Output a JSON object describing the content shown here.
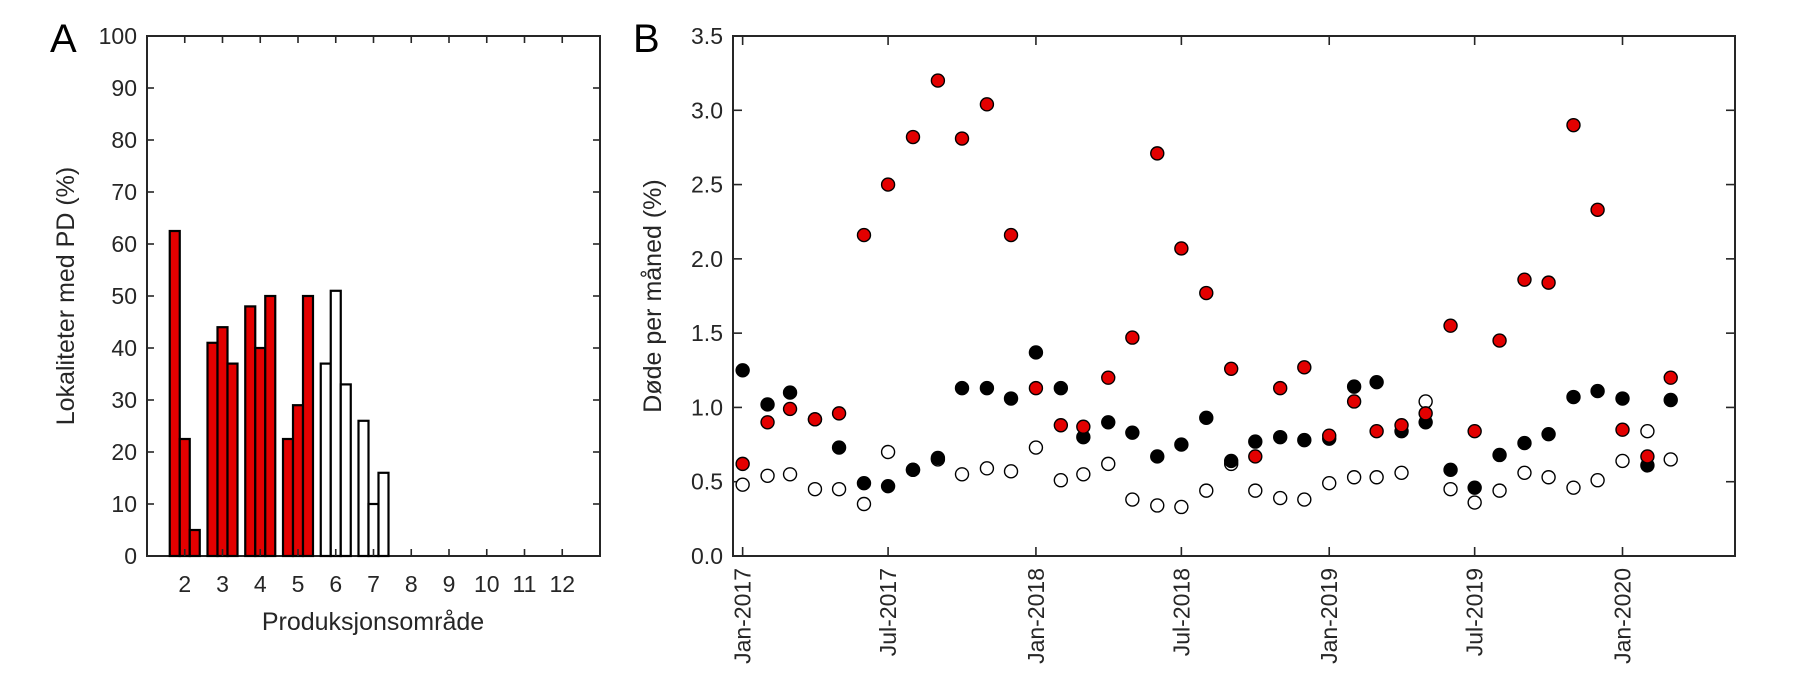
{
  "figure": {
    "colors": {
      "red": "#e30000",
      "black": "#000000",
      "white": "#ffffff",
      "axis": "#262626"
    }
  },
  "chart_data": [
    {
      "panel": "A",
      "type": "bar",
      "xlabel": "Produksjonsområde",
      "ylabel": "Lokaliteter med PD (%)",
      "ylim": [
        0,
        100
      ],
      "yticks": [
        0,
        10,
        20,
        30,
        40,
        50,
        60,
        70,
        80,
        90,
        100
      ],
      "categories": [
        "2",
        "3",
        "4",
        "5",
        "6",
        "7",
        "8",
        "9",
        "10",
        "11",
        "12"
      ],
      "fill_by_category": [
        "red",
        "red",
        "red",
        "red",
        "white",
        "white",
        "white",
        "white",
        "white",
        "white",
        "white"
      ],
      "series": [
        {
          "values": [
            62.5,
            41,
            48,
            22.5,
            37,
            26,
            0,
            0,
            0,
            0,
            0
          ]
        },
        {
          "values": [
            22.5,
            44,
            40,
            29,
            51,
            10,
            0,
            0,
            0,
            0,
            0
          ]
        },
        {
          "values": [
            5,
            37,
            50,
            50,
            33,
            16,
            0,
            0,
            0,
            0,
            0
          ]
        }
      ]
    },
    {
      "panel": "B",
      "type": "scatter",
      "ylabel": "Døde per måned (%)",
      "ylim": [
        0,
        3.5
      ],
      "yticks": [
        "0.0",
        "0.5",
        "1.0",
        "1.5",
        "2.0",
        "2.5",
        "3.0",
        "3.5"
      ],
      "xlim": [
        "2016-12-20",
        "2020-05-20"
      ],
      "xticks": [
        {
          "date": "2017-01-01",
          "label": "Jan-2017"
        },
        {
          "date": "2017-07-01",
          "label": "Jul-2017"
        },
        {
          "date": "2018-01-01",
          "label": "Jan-2018"
        },
        {
          "date": "2018-07-01",
          "label": "Jul-2018"
        },
        {
          "date": "2019-01-01",
          "label": "Jan-2019"
        },
        {
          "date": "2019-07-01",
          "label": "Jul-2019"
        },
        {
          "date": "2020-01-01",
          "label": "Jan-2020"
        }
      ],
      "x": [
        "2017-01",
        "2017-02",
        "2017-03",
        "2017-04",
        "2017-05",
        "2017-06",
        "2017-07",
        "2017-08",
        "2017-09",
        "2017-10",
        "2017-11",
        "2017-12",
        "2018-01",
        "2018-02",
        "2018-03",
        "2018-04",
        "2018-05",
        "2018-06",
        "2018-07",
        "2018-08",
        "2018-09",
        "2018-10",
        "2018-11",
        "2018-12",
        "2019-01",
        "2019-02",
        "2019-03",
        "2019-04",
        "2019-05",
        "2019-06",
        "2019-07",
        "2019-08",
        "2019-09",
        "2019-10",
        "2019-11",
        "2019-12",
        "2020-01",
        "2020-02",
        "2020-03"
      ],
      "series": [
        {
          "fill": "white",
          "values": [
            0.48,
            0.54,
            0.55,
            0.45,
            0.45,
            0.35,
            0.7,
            0.58,
            0.65,
            0.55,
            0.59,
            0.57,
            0.73,
            0.51,
            0.55,
            0.62,
            0.38,
            0.34,
            0.33,
            0.44,
            0.62,
            0.44,
            0.39,
            0.38,
            0.49,
            0.53,
            0.53,
            0.56,
            1.04,
            0.45,
            0.36,
            0.44,
            0.56,
            0.53,
            0.46,
            0.51,
            0.64,
            0.84,
            0.65
          ]
        },
        {
          "fill": "black",
          "values": [
            1.25,
            1.02,
            1.1,
            0.92,
            0.73,
            0.49,
            0.47,
            0.58,
            0.66,
            1.13,
            1.13,
            1.06,
            1.37,
            1.13,
            0.8,
            0.9,
            0.83,
            0.67,
            0.75,
            0.93,
            0.64,
            0.77,
            0.8,
            0.78,
            0.79,
            1.14,
            1.17,
            0.84,
            0.9,
            0.58,
            0.46,
            0.68,
            0.76,
            0.82,
            1.07,
            1.11,
            1.06,
            0.61,
            1.05
          ]
        },
        {
          "fill": "red",
          "values": [
            0.62,
            0.9,
            0.99,
            0.92,
            0.96,
            2.16,
            2.5,
            2.82,
            3.2,
            2.81,
            3.04,
            2.16,
            1.13,
            0.88,
            0.87,
            1.2,
            1.47,
            2.71,
            2.07,
            1.77,
            1.26,
            0.67,
            1.13,
            1.27,
            0.81,
            1.04,
            0.84,
            0.88,
            0.96,
            1.55,
            0.84,
            1.45,
            1.86,
            1.84,
            2.9,
            2.33,
            0.85,
            0.67,
            1.2
          ]
        }
      ]
    }
  ]
}
